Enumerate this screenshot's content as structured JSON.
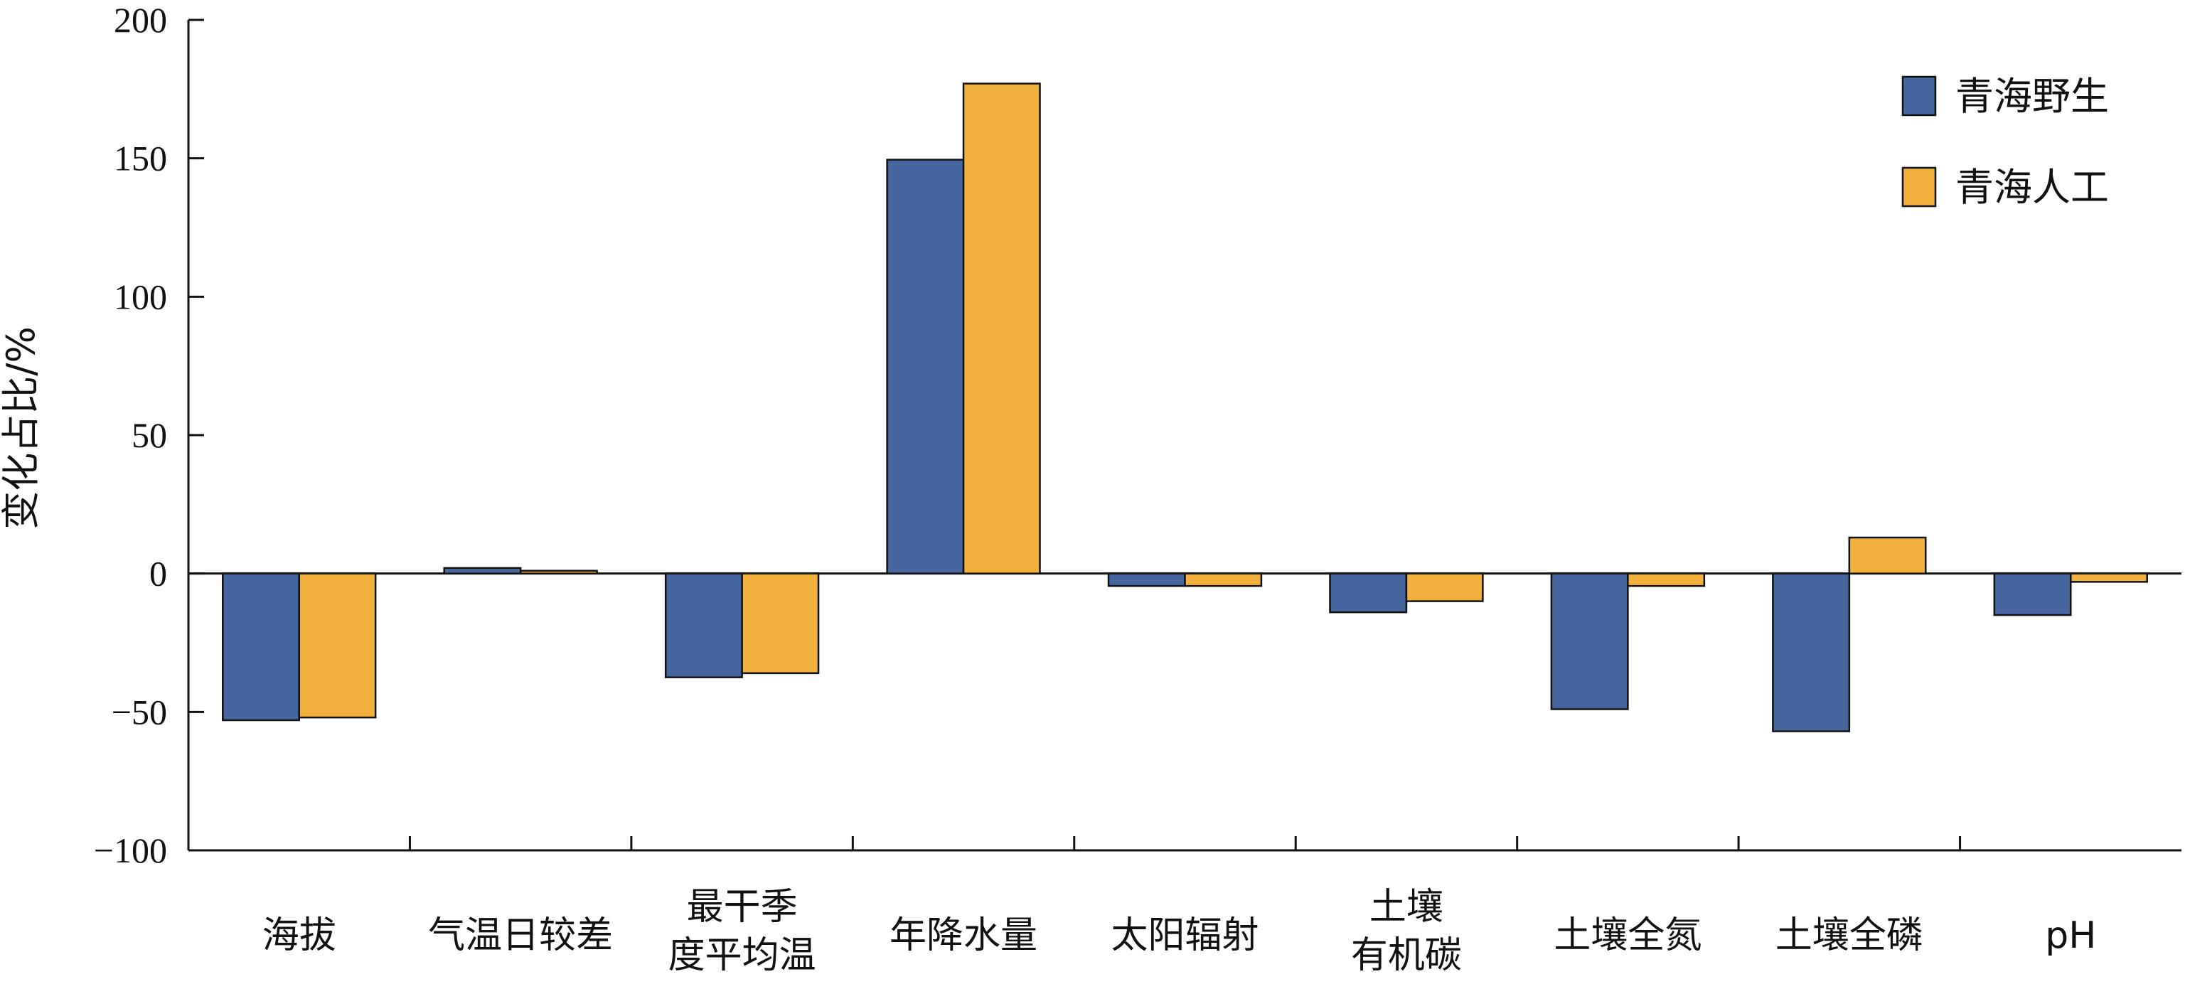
{
  "chart_data": {
    "type": "bar",
    "title": "",
    "xlabel": "",
    "ylabel": "变化占比/%",
    "ylim": [
      -100,
      200
    ],
    "yticks": [
      200,
      150,
      100,
      50,
      0,
      -50,
      -100
    ],
    "ytick_labels": [
      "200",
      "150",
      "100",
      "50",
      "0",
      "−50",
      "−100"
    ],
    "grid": false,
    "legend_position": "top-right",
    "categories": [
      [
        "海拔"
      ],
      [
        "气温日较差"
      ],
      [
        "最干季",
        "度平均温"
      ],
      [
        "年降水量"
      ],
      [
        "太阳辐射"
      ],
      [
        "土壤",
        "有机碳"
      ],
      [
        "土壤全氮"
      ],
      [
        "土壤全磷"
      ],
      [
        "pH"
      ]
    ],
    "series": [
      {
        "name": "青海野生",
        "color": "#45669e",
        "values": [
          -53,
          2,
          -37.5,
          149.5,
          -4.5,
          -14,
          -49,
          -57,
          -15
        ]
      },
      {
        "name": "青海人工",
        "color": "#f2b13d",
        "values": [
          -52,
          1,
          -36,
          177,
          -4.5,
          -10,
          -4.5,
          13,
          -3
        ]
      }
    ]
  }
}
